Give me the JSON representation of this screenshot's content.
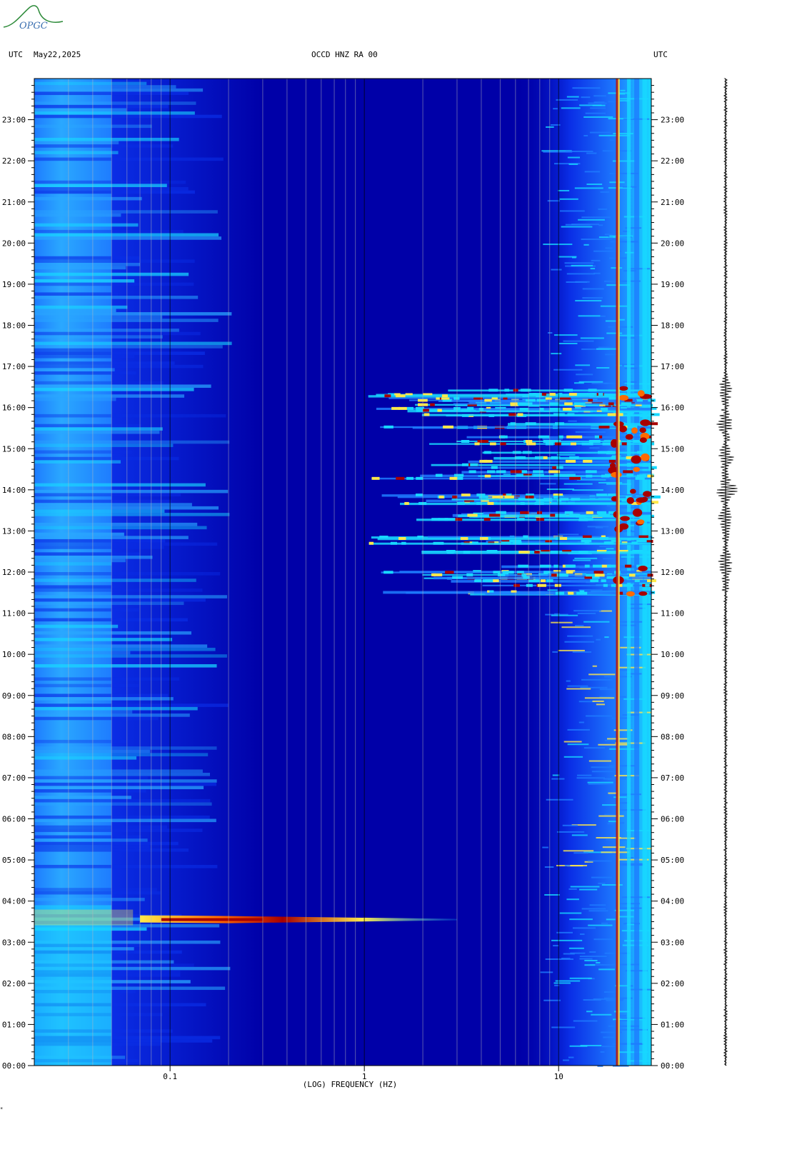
{
  "header": {
    "left_tz": "UTC",
    "date": "May22,2025",
    "station": "OCCD HNZ RA 00",
    "right_tz": "UTC"
  },
  "logo": {
    "text": "OPGC",
    "color": "#2e8b3a"
  },
  "footer_mark": "*",
  "chart_data": {
    "type": "heatmap",
    "title": "OCCD HNZ RA 00",
    "xlabel": "(LOG) FREQUENCY (HZ)",
    "ylabel": "",
    "x_scale": "log",
    "xlim_hz": [
      0.02,
      30
    ],
    "x_ticks": [
      {
        "value": 0.1,
        "label": "0.1"
      },
      {
        "value": 1,
        "label": "1"
      },
      {
        "value": 10,
        "label": "10"
      }
    ],
    "y_range_hours": [
      0,
      24
    ],
    "y_ticks": [
      "00:00",
      "01:00",
      "02:00",
      "03:00",
      "04:00",
      "05:00",
      "06:00",
      "07:00",
      "08:00",
      "09:00",
      "10:00",
      "11:00",
      "12:00",
      "13:00",
      "14:00",
      "15:00",
      "16:00",
      "17:00",
      "18:00",
      "19:00",
      "20:00",
      "21:00",
      "22:00",
      "23:00"
    ],
    "colormap": [
      "#0000a8",
      "#0a2ee6",
      "#1e7cff",
      "#18d8ff",
      "#ffe94a",
      "#ff6a00",
      "#a80000"
    ],
    "features": [
      {
        "name": "low-frequency background band",
        "freq_hz": [
          0.02,
          0.05
        ],
        "time_hours": [
          0,
          24
        ],
        "level": "medium-high"
      },
      {
        "name": "teleseismic event",
        "time_hours": 3.55,
        "freq_hz": [
          0.07,
          3.0
        ],
        "peak_freq_hz": 0.2,
        "level": "high"
      },
      {
        "name": "local activity",
        "time_hours": [
          11.5,
          16.5
        ],
        "freq_hz": [
          1.0,
          30
        ],
        "level": "high"
      },
      {
        "name": "persistent line",
        "freq_hz": 20,
        "time_hours": [
          0,
          24
        ],
        "level": "high"
      },
      {
        "name": "high-frequency noise band",
        "freq_hz": [
          10,
          30
        ],
        "time_hours": [
          0,
          24
        ],
        "level": "medium"
      }
    ],
    "trace_events_hours": [
      13.3,
      14.0,
      14.8,
      15.6,
      16.5,
      12.2
    ]
  }
}
